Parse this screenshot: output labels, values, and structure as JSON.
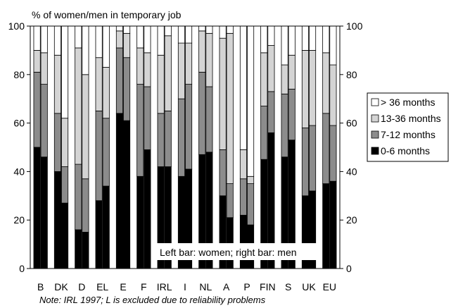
{
  "chart_data": {
    "type": "bar",
    "subtype": "stacked-paired",
    "title": "% of women/men in temporary job",
    "categories": [
      "B",
      "DK",
      "D",
      "EL",
      "E",
      "F",
      "IRL",
      "I",
      "NL",
      "A",
      "P",
      "FIN",
      "S",
      "UK",
      "EU"
    ],
    "bars_per_category": [
      "women",
      "men"
    ],
    "series": [
      {
        "name": "0-6 months",
        "color": "#000000",
        "women": [
          50,
          40,
          16,
          28,
          64,
          38,
          42,
          38,
          47,
          30,
          22,
          45,
          46,
          30,
          35
        ],
        "men": [
          46,
          27,
          15,
          34,
          61,
          49,
          42,
          41,
          48,
          21,
          18,
          56,
          53,
          32,
          36
        ]
      },
      {
        "name": "7-12 months",
        "color": "#8c8c8c",
        "women": [
          31,
          24,
          27,
          37,
          27,
          38,
          22,
          32,
          34,
          19,
          15,
          22,
          26,
          28,
          29
        ],
        "men": [
          30,
          15,
          22,
          28,
          26,
          26,
          23,
          35,
          27,
          14,
          17,
          17,
          21,
          27,
          23
        ]
      },
      {
        "name": "13-36 months",
        "color": "#d4d4d4",
        "women": [
          9,
          24,
          48,
          22,
          7,
          15,
          24,
          23,
          17,
          46,
          12,
          22,
          12,
          32,
          25
        ],
        "men": [
          13,
          20,
          43,
          21,
          10,
          14,
          31,
          17,
          22,
          62,
          3,
          19,
          14,
          31,
          25
        ]
      },
      {
        "name": "> 36 months",
        "color": "#ffffff",
        "women": [
          10,
          12,
          9,
          13,
          2,
          9,
          12,
          7,
          2,
          5,
          51,
          11,
          16,
          10,
          11
        ],
        "men": [
          11,
          38,
          20,
          17,
          3,
          11,
          4,
          7,
          3,
          3,
          62,
          8,
          12,
          10,
          16
        ]
      }
    ],
    "ylim": [
      0,
      100
    ],
    "yticks": [
      "0",
      "20",
      "40",
      "60",
      "80",
      "100"
    ],
    "legend": [
      "> 36 months",
      "13-36 months",
      "7-12 months",
      "0-6 months"
    ],
    "legend_position": "right",
    "annotation": "Left bar: women; right bar: men",
    "note": "Note: IRL 1997; L is excluded due to reliability problems",
    "grid": false
  }
}
